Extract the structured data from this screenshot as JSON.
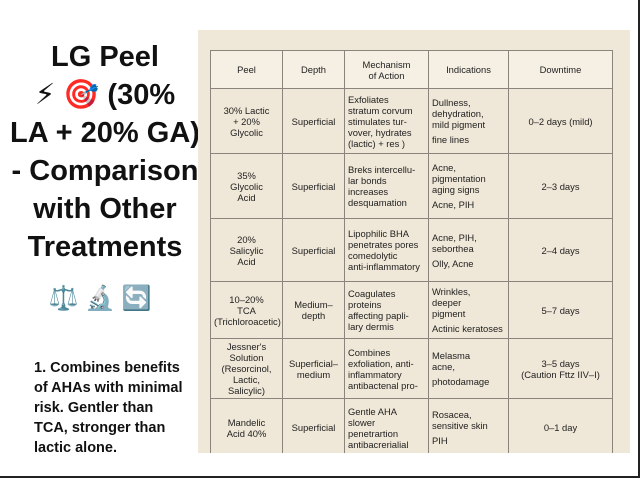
{
  "slide": {
    "title_lines": [
      "LG Peel",
      "⚡ 🎯 (30%",
      "LA + 20% GA)",
      "- Comparison",
      "with Other",
      "Treatments"
    ],
    "icons": "⚖️ 🔬 🔄",
    "note_lines": [
      "1. Combines benefits",
      "of AHAs with minimal",
      "risk. Gentler than",
      "TCA, stronger than",
      "lactic alone."
    ]
  },
  "table": {
    "header": [
      [
        "Peel"
      ],
      [
        "Depth"
      ],
      [
        "Mechanism",
        "of Action"
      ],
      [
        "Indications"
      ],
      [
        "Downtime"
      ]
    ],
    "rows": [
      [
        [
          "30% Lactic",
          "+ 20%",
          "Glycolic"
        ],
        [
          "Superficial"
        ],
        [
          "Exfoliates",
          "stratum corvum",
          "stimulates tur-",
          "vover, hydrates",
          "(lactic) + res )"
        ],
        [
          "Dullness,",
          "dehydration,",
          "mild pigment",
          "fine lines"
        ],
        [
          "0–2 days (mild)"
        ]
      ],
      [
        [
          "35%",
          "Glycolic",
          "Acid"
        ],
        [
          "Superficial"
        ],
        [
          "Breks intercellu-",
          "lar bonds",
          "increases",
          "desquamation"
        ],
        [
          "Acne,",
          "pigmentation",
          "aging signs",
          "Acne, PIH"
        ],
        [
          "2–3 days"
        ]
      ],
      [
        [
          "20%",
          "Salicylic",
          "Acid"
        ],
        [
          "Superficial"
        ],
        [
          "Lipophilic BHA",
          "penetrates pores",
          "comedolytic",
          "anti-inflammatory"
        ],
        [
          "Acne, PIH,",
          "seborthea",
          "Olly, Acne"
        ],
        [
          "2–4 days"
        ]
      ],
      [
        [
          "10–20%",
          "TCA",
          "(Trichloroacetic)"
        ],
        [
          "Medium–",
          "depth"
        ],
        [
          "Coagulates",
          "proteins",
          "affecting papli-",
          "lary dermis"
        ],
        [
          "Wrinkles,",
          "deeper",
          "pigment",
          "Actinic keratoses"
        ],
        [
          "5–7 days"
        ]
      ],
      [
        [
          "Jessner's",
          "Solution",
          "(Resorcinol,",
          "Lactic, Salicylic)"
        ],
        [
          "Superficial–",
          "medium"
        ],
        [
          "Combines",
          "exfoliation, anti-",
          "inflammatory",
          "antibactenal pro-"
        ],
        [
          "Melasma",
          "acne,",
          "photodamage"
        ],
        [
          "3–5 days",
          "(Caution Fttz IIV–I)"
        ]
      ],
      [
        [
          "Mandelic",
          "Acid 40%"
        ],
        [
          "Superficial"
        ],
        [
          "Gentle AHA",
          "slower",
          "penetrartion",
          "antibacrerialial"
        ],
        [
          "Rosacea,",
          "sensitive skin",
          "PIH"
        ],
        [
          "0–1 day"
        ]
      ]
    ]
  }
}
